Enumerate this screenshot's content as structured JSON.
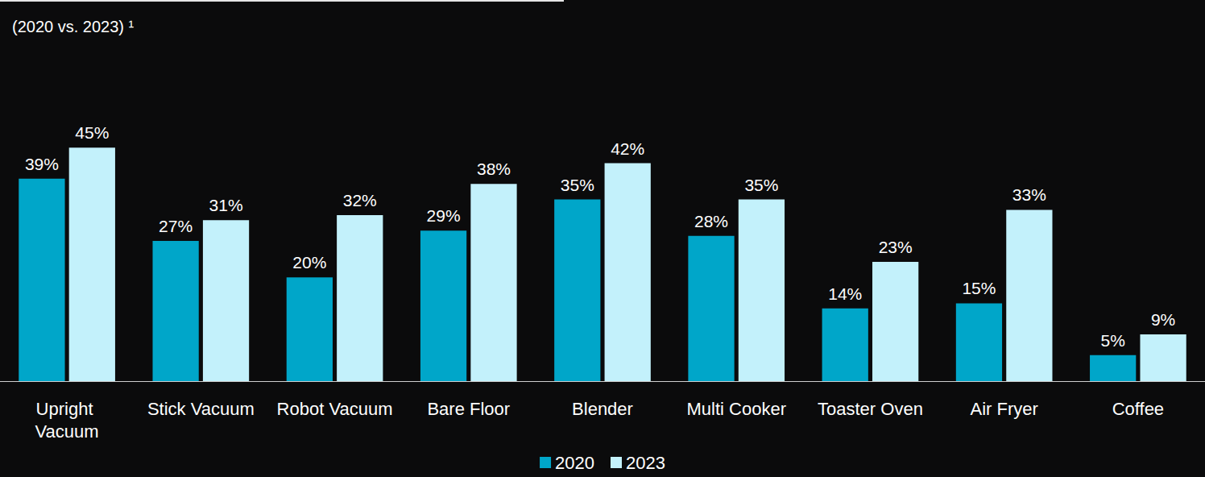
{
  "chart_data": {
    "type": "bar",
    "subtitle": "(2020 vs. 2023) ¹",
    "categories": [
      "Upright Vacuum",
      "Stick Vacuum",
      "Robot Vacuum",
      "Bare Floor",
      "Blender",
      "Multi Cooker",
      "Toaster Oven",
      "Air Fryer",
      "Coffee"
    ],
    "series": [
      {
        "name": "2020",
        "color": "#00a6c9",
        "values": [
          39,
          27,
          20,
          29,
          35,
          28,
          14,
          15,
          5
        ],
        "value_labels": [
          "39%",
          "27%",
          "20%",
          "29%",
          "35%",
          "28%",
          "14%",
          "15%",
          "5%"
        ]
      },
      {
        "name": "2023",
        "color": "#c3f1fb",
        "values": [
          45,
          31,
          32,
          38,
          42,
          35,
          23,
          33,
          9
        ],
        "value_labels": [
          "45%",
          "31%",
          "32%",
          "38%",
          "42%",
          "35%",
          "23%",
          "33%",
          "9%"
        ]
      }
    ],
    "ylim": [
      0,
      50
    ],
    "grid": false,
    "tick_labels": "x",
    "data_labels": true,
    "legend": "bottom"
  }
}
